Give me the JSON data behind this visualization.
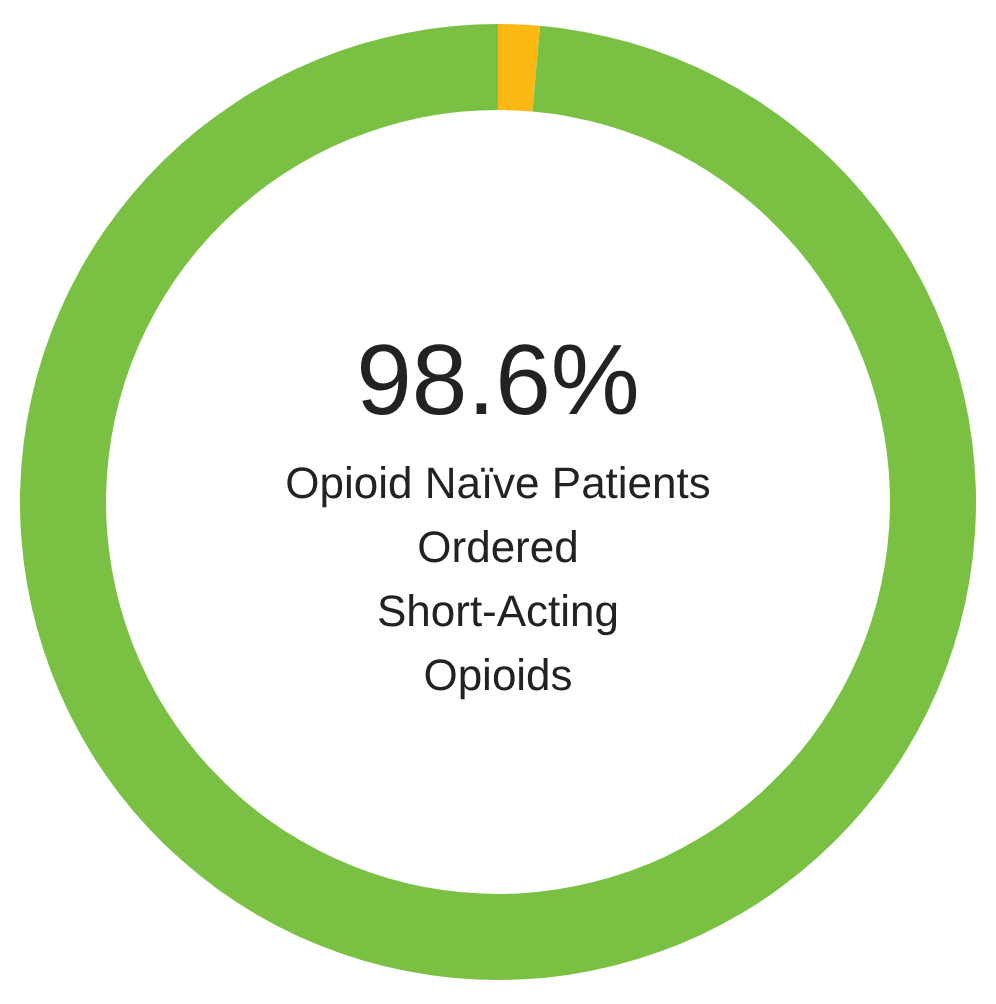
{
  "chart_data": {
    "type": "donut",
    "categories": [
      null,
      null
    ],
    "values": [
      1.4,
      98.6
    ],
    "colors": [
      "#fdb913",
      "#7ac143"
    ],
    "annotations": [
      "98.6%",
      "Opioid Naïve Patients\nOrdered\nShort-Acting\nOpioids"
    ],
    "legend": false
  }
}
